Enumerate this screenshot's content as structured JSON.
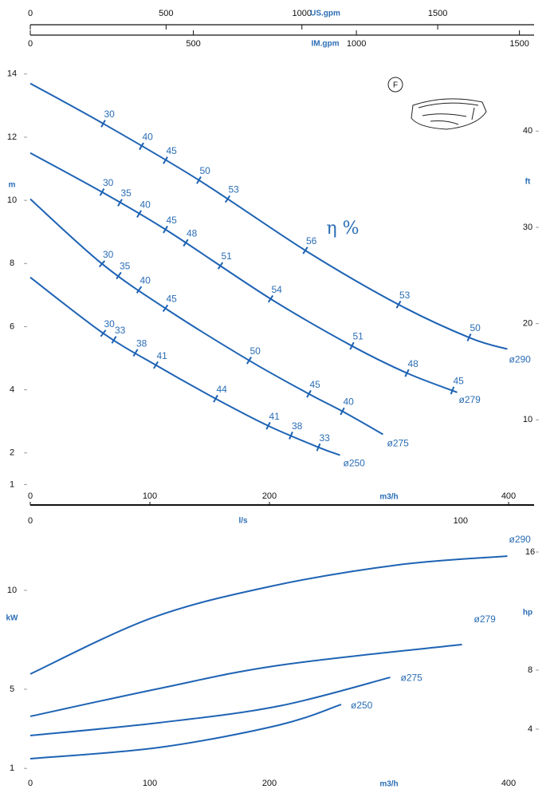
{
  "icon_label": "F",
  "chart_data": [
    {
      "type": "line",
      "x_label": "m3/h",
      "y_label": "m",
      "y2_label": "ft",
      "annotation": "η %",
      "xlim": [
        0,
        420
      ],
      "xticks": [
        0,
        100,
        200,
        400
      ],
      "ylim": [
        0.58,
        14.5
      ],
      "yticks": [
        1,
        2,
        4,
        6,
        8,
        10,
        12,
        14
      ],
      "y2lim": [
        1.9,
        47.57
      ],
      "y2ticks": [
        10,
        20,
        30,
        40
      ],
      "top_axes": [
        {
          "label": "US.gpm",
          "lim": [
            0,
            1849
          ],
          "ticks": [
            0,
            500,
            1000,
            1500
          ]
        },
        {
          "label": "IM.gpm",
          "lim": [
            0,
            1540
          ],
          "ticks": [
            0,
            500,
            1000,
            1500
          ]
        }
      ],
      "color": "#1e63b4",
      "series": [
        {
          "name": "ø290",
          "x": [
            0,
            61,
            141,
            231,
            308,
            368,
            399
          ],
          "values": [
            13.7,
            12.43,
            10.64,
            8.39,
            6.7,
            5.64,
            5.29
          ],
          "efficiency": {
            "x": [
              61,
              93,
              113,
              141,
              165,
              230,
              308,
              367
            ],
            "values": [
              30,
              40,
              45,
              50,
              53,
              56,
              53,
              50
            ]
          }
        },
        {
          "name": "ø279",
          "x": [
            0,
            61,
            115,
            201,
            268,
            315,
            357
          ],
          "values": [
            11.5,
            10.24,
            9.03,
            6.88,
            5.41,
            4.53,
            3.92
          ],
          "efficiency": {
            "x": [
              60,
              75,
              91,
              113,
              130,
              159,
              201,
              269,
              315,
              353
            ],
            "values": [
              30,
              35,
              40,
              45,
              48,
              51,
              54,
              51,
              48,
              45
            ]
          }
        },
        {
          "name": "ø275",
          "x": [
            0,
            60,
            115,
            183,
            233,
            261,
            295
          ],
          "values": [
            10.04,
            7.99,
            6.53,
            4.93,
            3.87,
            3.32,
            2.59
          ],
          "efficiency": {
            "x": [
              60,
              74,
              91,
              113,
              183,
              233,
              261
            ],
            "values": [
              30,
              35,
              40,
              45,
              50,
              45,
              40
            ]
          }
        },
        {
          "name": "ø250",
          "x": [
            0,
            61,
            106,
            155,
            199,
            241,
            259
          ],
          "values": [
            7.56,
            5.79,
            4.76,
            3.72,
            2.86,
            2.18,
            1.93
          ],
          "efficiency": {
            "x": [
              61,
              70,
              88,
              105,
              155,
              199,
              218,
              241
            ],
            "values": [
              30,
              33,
              38,
              41,
              44,
              41,
              38,
              33
            ]
          }
        }
      ]
    },
    {
      "type": "line",
      "x_label": "m3/h",
      "y_label": "kW",
      "y2_label": "hp",
      "xlim": [
        0,
        420
      ],
      "xticks": [
        0,
        100,
        200,
        400
      ],
      "ylim": [
        0.12,
        12.82
      ],
      "yticks": [
        1,
        5,
        10
      ],
      "y2lim": [
        0.16,
        17.19
      ],
      "y2ticks": [
        4,
        8,
        16
      ],
      "top_axes": [
        {
          "label": "l/s",
          "lim": [
            0,
            116.7
          ],
          "ticks": [
            0,
            100
          ]
        }
      ],
      "color": "#1e63b4",
      "series": [
        {
          "name": "ø290",
          "x": [
            0,
            101,
            201,
            308,
            399
          ],
          "values": [
            5.77,
            8.59,
            10.2,
            11.29,
            11.73
          ]
        },
        {
          "name": "ø279",
          "x": [
            0,
            108,
            208,
            361
          ],
          "values": [
            3.63,
            5.04,
            6.21,
            7.26
          ]
        },
        {
          "name": "ø275",
          "x": [
            0,
            108,
            208,
            301
          ],
          "values": [
            2.66,
            3.31,
            4.15,
            5.6
          ]
        },
        {
          "name": "ø250",
          "x": [
            0,
            108,
            208,
            260
          ],
          "values": [
            1.49,
            2.06,
            3.19,
            4.23
          ]
        }
      ]
    }
  ]
}
